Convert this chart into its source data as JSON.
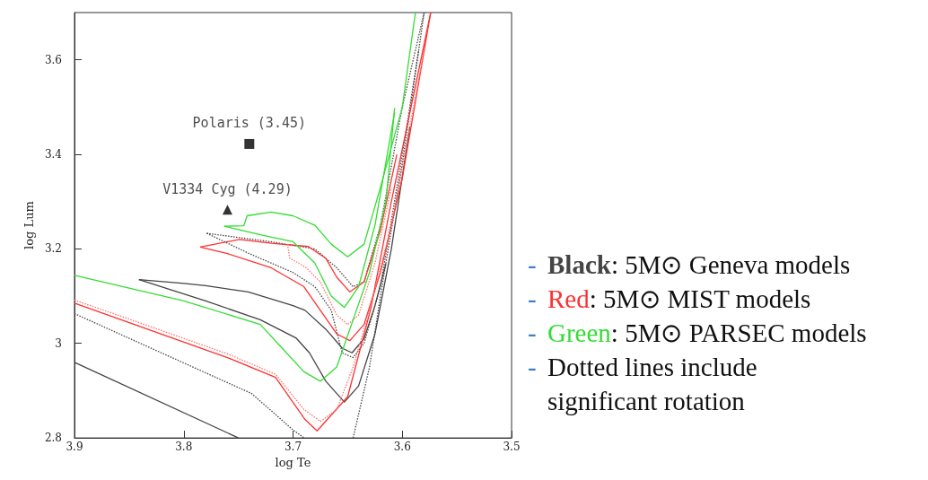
{
  "chart_data": {
    "type": "line",
    "xlabel": "log Te",
    "ylabel": "log Lum",
    "xlim": [
      3.9,
      3.5
    ],
    "ylim": [
      2.8,
      3.7
    ],
    "xticks": [
      3.9,
      3.8,
      3.7,
      3.6,
      3.5
    ],
    "yticks": [
      2.8,
      3,
      3.2,
      3.4,
      3.6
    ],
    "grid": false,
    "legend": false,
    "marker": "none",
    "series": [
      {
        "color": "#444444",
        "x": [
          3.9,
          3.75
        ],
        "values": [
          2.96,
          2.8
        ]
      },
      {
        "color": "#444444",
        "x": [
          3.841,
          3.8,
          3.78,
          3.741,
          3.7,
          3.689,
          3.67,
          3.655,
          3.646,
          3.635,
          3.625,
          3.615
        ],
        "values": [
          3.135,
          3.127,
          3.122,
          3.109,
          3.08,
          3.07,
          3.03,
          2.99,
          2.98,
          3.01,
          3.08,
          3.169
        ]
      },
      {
        "color": "#444444",
        "x": [
          3.841,
          3.78,
          3.73,
          3.697,
          3.685,
          3.67,
          3.653,
          3.64,
          3.625,
          3.61,
          3.593
        ],
        "values": [
          3.135,
          3.09,
          3.05,
          3.011,
          2.98,
          2.92,
          2.876,
          2.91,
          3.02,
          3.2,
          3.459
        ]
      },
      {
        "color": "#444444",
        "line_style": "dotted",
        "x": [
          3.9,
          3.738,
          3.7,
          3.69
        ],
        "values": [
          3.063,
          2.894,
          2.817,
          2.8
        ]
      },
      {
        "color": "#444444",
        "line_style": "dotted",
        "x": [
          3.645,
          3.63,
          3.62,
          3.6,
          3.58
        ],
        "values": [
          2.8,
          2.95,
          3.1,
          3.38,
          3.7
        ]
      },
      {
        "color": "#444444",
        "line_style": "dotted",
        "x": [
          3.779,
          3.72,
          3.68,
          3.66,
          3.645,
          3.635,
          3.62,
          3.6,
          3.58
        ],
        "values": [
          3.233,
          3.215,
          3.2,
          3.16,
          3.12,
          3.13,
          3.25,
          3.5,
          3.7
        ]
      },
      {
        "color": "#444444",
        "line_style": "dotted",
        "x": [
          3.779,
          3.74,
          3.7,
          3.68,
          3.665,
          3.655,
          3.645,
          3.635,
          3.62,
          3.6,
          3.585
        ],
        "values": [
          3.233,
          3.19,
          3.15,
          3.12,
          3.07,
          2.98,
          2.97,
          3.0,
          3.12,
          3.4,
          3.62
        ]
      },
      {
        "color": "#ff3030",
        "x": [
          3.9,
          3.76,
          3.716,
          3.689,
          3.678,
          3.65,
          3.629,
          3.61,
          3.574
        ],
        "values": [
          3.085,
          2.97,
          2.928,
          2.839,
          2.815,
          2.887,
          3.072,
          3.3,
          3.7
        ]
      },
      {
        "color": "#ff3030",
        "x": [
          3.785,
          3.749,
          3.72,
          3.686,
          3.67,
          3.66,
          3.648,
          3.635,
          3.62,
          3.605
        ],
        "values": [
          3.204,
          3.22,
          3.212,
          3.205,
          3.18,
          3.14,
          3.109,
          3.13,
          3.24,
          3.4
        ]
      },
      {
        "color": "#ff3030",
        "x": [
          3.785,
          3.76,
          3.72,
          3.69,
          3.675,
          3.66,
          3.648,
          3.635,
          3.62,
          3.6,
          3.574
        ],
        "values": [
          3.204,
          3.19,
          3.16,
          3.12,
          3.07,
          3.02,
          3.006,
          3.04,
          3.15,
          3.35,
          3.7
        ]
      },
      {
        "color": "#ff7070",
        "line_style": "dotted",
        "x": [
          3.9,
          3.76,
          3.716,
          3.69,
          3.675,
          3.66,
          3.645,
          3.63,
          3.61,
          3.58
        ],
        "values": [
          3.092,
          2.978,
          2.935,
          2.86,
          2.835,
          2.86,
          2.95,
          3.07,
          3.25,
          3.62
        ]
      },
      {
        "color": "#ff7070",
        "line_style": "dotted",
        "x": [
          3.705,
          3.703,
          3.695,
          3.688,
          3.675,
          3.66,
          3.65,
          3.64,
          3.625,
          3.61
        ],
        "values": [
          3.21,
          3.18,
          3.17,
          3.16,
          3.13,
          3.06,
          3.04,
          3.06,
          3.17,
          3.33
        ]
      },
      {
        "color": "#33dd33",
        "x": [
          3.9,
          3.8,
          3.73,
          3.71,
          3.69,
          3.675,
          3.66,
          3.645,
          3.63,
          3.615,
          3.607
        ],
        "values": [
          3.144,
          3.09,
          3.04,
          2.99,
          2.94,
          2.92,
          2.95,
          3.05,
          3.15,
          3.3,
          3.498
        ]
      },
      {
        "color": "#33dd33",
        "x": [
          3.763,
          3.73,
          3.7,
          3.68,
          3.665,
          3.653,
          3.64,
          3.625,
          3.607
        ],
        "values": [
          3.248,
          3.23,
          3.215,
          3.17,
          3.1,
          3.076,
          3.12,
          3.25,
          3.49
        ]
      },
      {
        "color": "#33dd33",
        "x": [
          3.763,
          3.745,
          3.742,
          3.72,
          3.7,
          3.68,
          3.665,
          3.65,
          3.635,
          3.62,
          3.6,
          3.588
        ],
        "values": [
          3.248,
          3.249,
          3.27,
          3.278,
          3.27,
          3.25,
          3.21,
          3.183,
          3.21,
          3.33,
          3.5,
          3.7
        ]
      },
      {
        "type": "scatter",
        "name": "Polaris (3.45)",
        "color": "#000000",
        "marker": "square",
        "x": [
          3.74
        ],
        "values": [
          3.422
        ]
      },
      {
        "type": "scatter",
        "name": "V1334 Cyg (4.29)",
        "color": "#000000",
        "marker": "triangle",
        "x": [
          3.76
        ],
        "values": [
          3.283
        ]
      }
    ],
    "annotations": [
      "- Black: 5M⊙ Geneva models",
      "- Red: 5M⊙ MIST models",
      "- Green: 5M⊙ PARSEC models",
      "- Dotted lines include significant rotation"
    ]
  }
}
